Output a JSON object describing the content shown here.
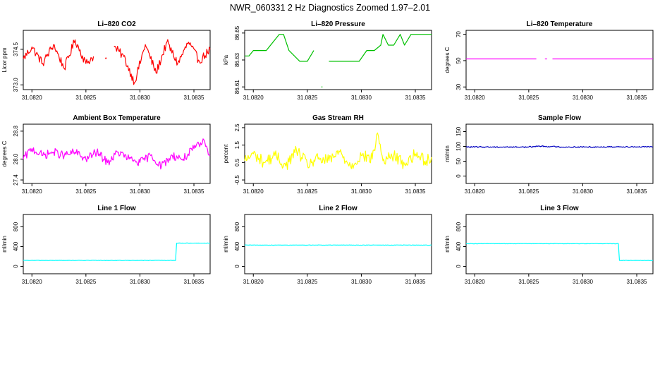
{
  "figure": {
    "title": "NWR_060331  2 Hz Diagnostics Zoomed 1.97–2.01",
    "x_ticks": [
      "31.0820",
      "31.0825",
      "31.0830",
      "31.0835"
    ]
  },
  "chart_data": [
    {
      "type": "line",
      "title": "Li–820 CO2",
      "ylabel": "Licor ppm",
      "color": "#ff0000",
      "x_tick_values": [
        31.082,
        31.0825,
        31.083,
        31.0835
      ],
      "x_tick_labels": [
        "31.0820",
        "31.0825",
        "31.0830",
        "31.0835"
      ],
      "xlim": [
        31.08192,
        31.08365
      ],
      "y_ticks": [
        373.0,
        374.5
      ],
      "y_tick_labels": [
        "373.0",
        "374.5"
      ],
      "ylim": [
        372.8,
        375.3
      ],
      "series": [
        {
          "name": "segment 1",
          "x": [
            31.08192,
            31.082,
            31.0821,
            31.0822,
            31.0823,
            31.0824,
            31.0825,
            31.08257
          ],
          "y": [
            374.1,
            374.6,
            373.9,
            374.7,
            373.7,
            374.9,
            373.9,
            374.2
          ]
        },
        {
          "name": "isolated",
          "x": [
            31.08268,
            31.08269
          ],
          "y": [
            374.1,
            374.1
          ]
        },
        {
          "name": "segment 2",
          "x": [
            31.08276,
            31.08285,
            31.08295,
            31.08305,
            31.08315,
            31.08325,
            31.08335,
            31.08345,
            31.08355,
            31.08365
          ],
          "y": [
            374.6,
            374.2,
            373.1,
            374.7,
            373.5,
            374.8,
            373.9,
            374.8,
            374.0,
            374.5
          ]
        }
      ]
    },
    {
      "type": "line",
      "title": "Li–820 Pressure",
      "ylabel": "kPa",
      "color": "#00c000",
      "x_tick_values": [
        31.082,
        31.0825,
        31.083,
        31.0835
      ],
      "x_tick_labels": [
        "31.0820",
        "31.0825",
        "31.0830",
        "31.0835"
      ],
      "xlim": [
        31.08192,
        31.08365
      ],
      "y_ticks": [
        86.61,
        86.63,
        86.65
      ],
      "y_tick_labels": [
        "86.61",
        "86.63",
        "86.65"
      ],
      "ylim": [
        86.608,
        86.652
      ],
      "series": [
        {
          "name": "segment 1",
          "x": [
            31.08192,
            31.08196,
            31.082,
            31.08204,
            31.08212,
            31.08224,
            31.08228,
            31.08233,
            31.08243,
            31.0825,
            31.08256
          ],
          "y": [
            86.633,
            86.633,
            86.637,
            86.637,
            86.637,
            86.649,
            86.649,
            86.637,
            86.629,
            86.629,
            86.637
          ]
        },
        {
          "name": "isolated",
          "x": [
            31.08263,
            31.08264
          ],
          "y": [
            86.61,
            86.61
          ]
        },
        {
          "name": "segment 2",
          "x": [
            31.0827,
            31.0829,
            31.08298,
            31.08305,
            31.08312,
            31.08318,
            31.0832,
            31.08325,
            31.0833,
            31.08336,
            31.0834,
            31.08346,
            31.08352,
            31.08358,
            31.08365
          ],
          "y": [
            86.629,
            86.629,
            86.629,
            86.637,
            86.637,
            86.641,
            86.649,
            86.641,
            86.641,
            86.649,
            86.641,
            86.649,
            86.649,
            86.649,
            86.649
          ]
        }
      ]
    },
    {
      "type": "line",
      "title": "Li–820 Temperature",
      "ylabel": "degrees C",
      "color": "#ff00ff",
      "x_tick_values": [
        31.082,
        31.0825,
        31.083,
        31.0835
      ],
      "x_tick_labels": [
        "31.0820",
        "31.0825",
        "31.0830",
        "31.0835"
      ],
      "xlim": [
        31.08192,
        31.08365
      ],
      "y_ticks": [
        30,
        50,
        70
      ],
      "y_tick_labels": [
        "30",
        "50",
        "70"
      ],
      "ylim": [
        28,
        73
      ],
      "series": [
        {
          "name": "segment 1",
          "x": [
            31.08192,
            31.08257
          ],
          "y": [
            51.3,
            51.3
          ]
        },
        {
          "name": "segment 2",
          "x": [
            31.08265,
            31.08267
          ],
          "y": [
            51.3,
            51.3
          ]
        },
        {
          "name": "segment 3",
          "x": [
            31.08272,
            31.08365
          ],
          "y": [
            51.3,
            51.3
          ]
        }
      ]
    },
    {
      "type": "line",
      "title": "Ambient Box Temperature",
      "ylabel": "degrees C",
      "color": "#ff00ff",
      "x_tick_values": [
        31.082,
        31.0825,
        31.083,
        31.0835
      ],
      "x_tick_labels": [
        "31.0820",
        "31.0825",
        "31.0830",
        "31.0835"
      ],
      "xlim": [
        31.08192,
        31.08365
      ],
      "y_ticks": [
        27.4,
        28.0,
        28.8
      ],
      "y_tick_labels": [
        "27.4",
        "28.0",
        "28.8"
      ],
      "ylim": [
        27.3,
        29.0
      ],
      "series": [
        {
          "name": "series",
          "x": [
            31.08192,
            31.082,
            31.0821,
            31.0822,
            31.0823,
            31.0824,
            31.0825,
            31.0826,
            31.0827,
            31.0828,
            31.0829,
            31.083,
            31.0831,
            31.0832,
            31.0833,
            31.0834,
            31.0835,
            31.0836,
            31.08365
          ],
          "y": [
            28.0,
            28.3,
            28.1,
            28.2,
            28.1,
            28.2,
            28.0,
            28.2,
            27.9,
            28.2,
            28.0,
            27.9,
            28.1,
            27.8,
            28.1,
            28.0,
            28.3,
            28.5,
            28.1
          ]
        }
      ]
    },
    {
      "type": "line",
      "title": "Gas Stream RH",
      "ylabel": "percent",
      "color": "#ffff00",
      "x_tick_values": [
        31.082,
        31.0825,
        31.083,
        31.0835
      ],
      "x_tick_labels": [
        "31.0820",
        "31.0825",
        "31.0830",
        "31.0835"
      ],
      "xlim": [
        31.08192,
        31.08365
      ],
      "y_ticks": [
        -0.5,
        0.5,
        1.5,
        2.5
      ],
      "y_tick_labels": [
        "-0.5",
        "0.5",
        "1.5",
        "2.5"
      ],
      "ylim": [
        -0.7,
        2.7
      ],
      "series": [
        {
          "name": "series",
          "x": [
            31.08192,
            31.082,
            31.0821,
            31.0822,
            31.0823,
            31.0824,
            31.0825,
            31.0826,
            31.0827,
            31.0828,
            31.0829,
            31.083,
            31.0831,
            31.08315,
            31.0832,
            31.0833,
            31.0834,
            31.0835,
            31.0836,
            31.08365
          ],
          "y": [
            0.6,
            1.0,
            0.5,
            0.9,
            0.3,
            1.2,
            0.4,
            0.7,
            0.6,
            1.1,
            0.3,
            0.9,
            0.7,
            2.2,
            0.6,
            0.9,
            0.4,
            1.0,
            0.6,
            0.8
          ]
        }
      ]
    },
    {
      "type": "line",
      "title": "Sample Flow",
      "ylabel": "ml/min",
      "color": "#0000c0",
      "x_tick_values": [
        31.082,
        31.0825,
        31.083,
        31.0835
      ],
      "x_tick_labels": [
        "31.0820",
        "31.0825",
        "31.0830",
        "31.0835"
      ],
      "xlim": [
        31.08192,
        31.08365
      ],
      "y_ticks": [
        0,
        50,
        100,
        150
      ],
      "y_tick_labels": [
        "0",
        "50",
        "100",
        "150"
      ],
      "ylim": [
        -25,
        175
      ],
      "series": [
        {
          "name": "series",
          "x": [
            31.08192,
            31.0822,
            31.0825,
            31.0826,
            31.0828,
            31.0831,
            31.0834,
            31.08365
          ],
          "y": [
            98,
            98,
            98,
            101,
            98,
            98,
            99,
            98
          ]
        }
      ]
    },
    {
      "type": "line",
      "title": "Line 1 Flow",
      "ylabel": "ml/min",
      "color": "#00ffff",
      "x_tick_values": [
        31.082,
        31.0825,
        31.083,
        31.0835
      ],
      "x_tick_labels": [
        "31.0820",
        "31.0825",
        "31.0830",
        "31.0835"
      ],
      "xlim": [
        31.08192,
        31.08365
      ],
      "y_ticks": [
        0,
        400,
        800
      ],
      "y_tick_labels": [
        "0",
        "400",
        "800"
      ],
      "ylim": [
        -150,
        1050
      ],
      "series": [
        {
          "name": "series",
          "x": [
            31.08192,
            31.08333,
            31.08334,
            31.08365
          ],
          "y": [
            120,
            120,
            470,
            470
          ]
        }
      ]
    },
    {
      "type": "line",
      "title": "Line 2 Flow",
      "ylabel": "ml/min",
      "color": "#00ffff",
      "x_tick_values": [
        31.082,
        31.0825,
        31.083,
        31.0835
      ],
      "x_tick_labels": [
        "31.0820",
        "31.0825",
        "31.0830",
        "31.0835"
      ],
      "xlim": [
        31.08192,
        31.08365
      ],
      "y_ticks": [
        0,
        400,
        800
      ],
      "y_tick_labels": [
        "0",
        "400",
        "800"
      ],
      "ylim": [
        -150,
        1050
      ],
      "series": [
        {
          "name": "series",
          "x": [
            31.08192,
            31.08365
          ],
          "y": [
            430,
            430
          ]
        }
      ]
    },
    {
      "type": "line",
      "title": "Line 3 Flow",
      "ylabel": "ml/min",
      "color": "#00ffff",
      "x_tick_values": [
        31.082,
        31.0825,
        31.083,
        31.0835
      ],
      "x_tick_labels": [
        "31.0820",
        "31.0825",
        "31.0830",
        "31.0835"
      ],
      "xlim": [
        31.08192,
        31.08365
      ],
      "y_ticks": [
        0,
        400,
        800
      ],
      "y_tick_labels": [
        "0",
        "400",
        "800"
      ],
      "ylim": [
        -150,
        1050
      ],
      "series": [
        {
          "name": "series",
          "x": [
            31.08192,
            31.08333,
            31.08334,
            31.08365
          ],
          "y": [
            460,
            460,
            120,
            120
          ]
        }
      ]
    }
  ]
}
